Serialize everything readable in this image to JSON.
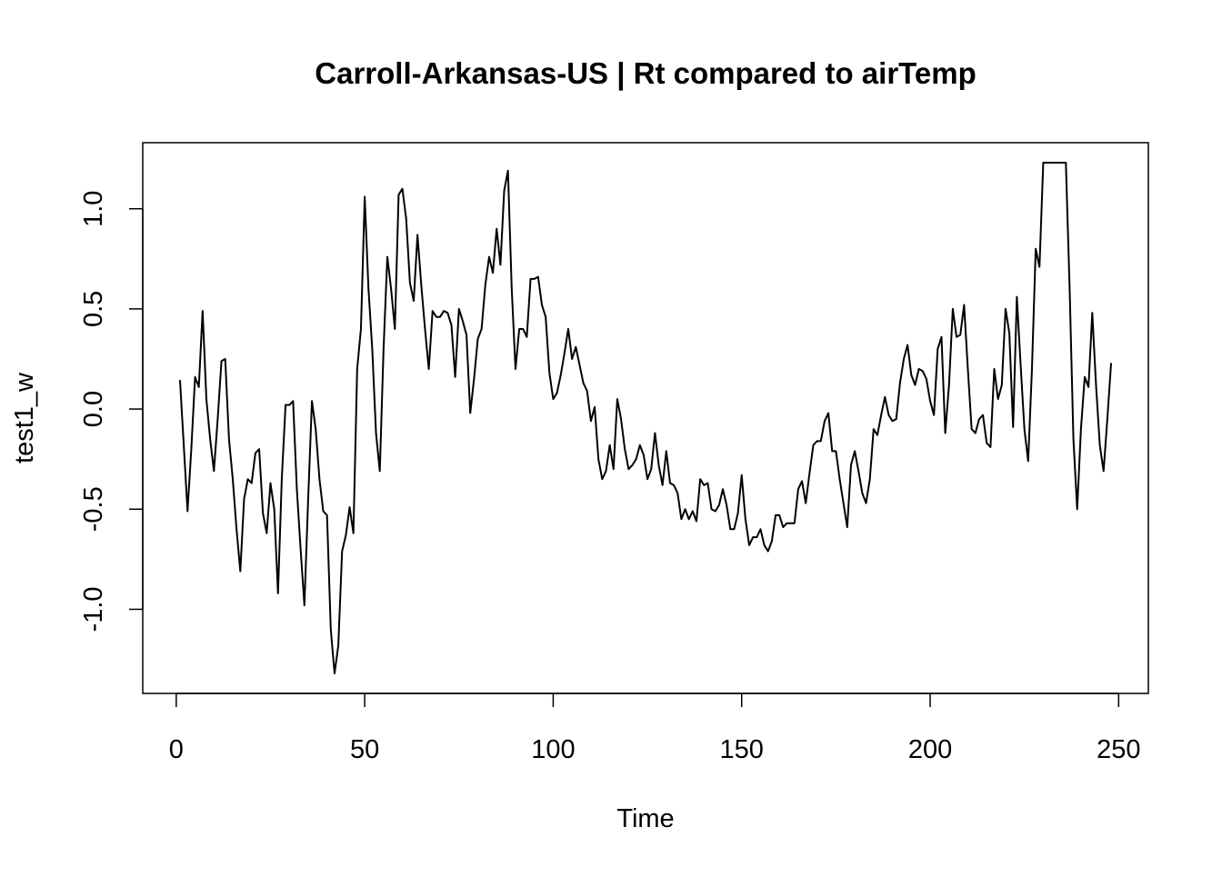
{
  "chart_data": {
    "type": "line",
    "title": "Carroll-Arkansas-US | Rt compared to airTemp",
    "xlabel": "Time",
    "ylabel": "test1_w",
    "x": [
      1,
      2,
      3,
      4,
      5,
      6,
      7,
      8,
      9,
      10,
      11,
      12,
      13,
      14,
      15,
      16,
      17,
      18,
      19,
      20,
      21,
      22,
      23,
      24,
      25,
      26,
      27,
      28,
      29,
      30,
      31,
      32,
      33,
      34,
      35,
      36,
      37,
      38,
      39,
      40,
      41,
      42,
      43,
      44,
      45,
      46,
      47,
      48,
      49,
      50,
      51,
      52,
      53,
      54,
      55,
      56,
      57,
      58,
      59,
      60,
      61,
      62,
      63,
      64,
      65,
      66,
      67,
      68,
      69,
      70,
      71,
      72,
      73,
      74,
      75,
      76,
      77,
      78,
      79,
      80,
      81,
      82,
      83,
      84,
      85,
      86,
      87,
      88,
      89,
      90,
      91,
      92,
      93,
      94,
      95,
      96,
      97,
      98,
      99,
      100,
      101,
      102,
      103,
      104,
      105,
      106,
      107,
      108,
      109,
      110,
      111,
      112,
      113,
      114,
      115,
      116,
      117,
      118,
      119,
      120,
      121,
      122,
      123,
      124,
      125,
      126,
      127,
      128,
      129,
      130,
      131,
      132,
      133,
      134,
      135,
      136,
      137,
      138,
      139,
      140,
      141,
      142,
      143,
      144,
      145,
      146,
      147,
      148,
      149,
      150,
      151,
      152,
      153,
      154,
      155,
      156,
      157,
      158,
      159,
      160,
      161,
      162,
      163,
      164,
      165,
      166,
      167,
      168,
      169,
      170,
      171,
      172,
      173,
      174,
      175,
      176,
      177,
      178,
      179,
      180,
      181,
      182,
      183,
      184,
      185,
      186,
      187,
      188,
      189,
      190,
      191,
      192,
      193,
      194,
      195,
      196,
      197,
      198,
      199,
      200,
      201,
      202,
      203,
      204,
      205,
      206,
      207,
      208,
      209,
      210,
      211,
      212,
      213,
      214,
      215,
      216,
      217,
      218,
      219,
      220,
      221,
      222,
      223,
      224,
      225,
      226,
      227,
      228,
      229,
      230,
      231,
      232,
      233,
      234,
      235,
      236,
      237,
      238,
      239,
      240,
      241,
      242,
      243,
      244,
      245,
      246,
      247,
      248
    ],
    "series": [
      {
        "name": "test1_w",
        "color": "#000000",
        "values": [
          0.145,
          -0.18,
          -0.51,
          -0.2,
          0.16,
          0.11,
          0.49,
          0.05,
          -0.15,
          -0.31,
          -0.05,
          0.24,
          0.25,
          -0.15,
          -0.35,
          -0.6,
          -0.81,
          -0.45,
          -0.35,
          -0.37,
          -0.22,
          -0.2,
          -0.52,
          -0.62,
          -0.37,
          -0.5,
          -0.92,
          -0.35,
          0.02,
          0.02,
          0.04,
          -0.4,
          -0.7,
          -0.98,
          -0.45,
          0.04,
          -0.1,
          -0.35,
          -0.51,
          -0.53,
          -1.1,
          -1.32,
          -1.18,
          -0.71,
          -0.63,
          -0.49,
          -0.62,
          0.2,
          0.4,
          1.06,
          0.6,
          0.3,
          -0.12,
          -0.31,
          0.3,
          0.76,
          0.6,
          0.4,
          1.07,
          1.1,
          0.95,
          0.63,
          0.54,
          0.87,
          0.62,
          0.4,
          0.2,
          0.49,
          0.46,
          0.46,
          0.49,
          0.48,
          0.42,
          0.16,
          0.5,
          0.44,
          0.37,
          -0.02,
          0.15,
          0.35,
          0.4,
          0.62,
          0.76,
          0.68,
          0.9,
          0.72,
          1.09,
          1.19,
          0.6,
          0.2,
          0.4,
          0.4,
          0.36,
          0.65,
          0.65,
          0.66,
          0.52,
          0.46,
          0.18,
          0.05,
          0.08,
          0.17,
          0.28,
          0.4,
          0.25,
          0.31,
          0.22,
          0.13,
          0.09,
          -0.06,
          0.01,
          -0.25,
          -0.35,
          -0.31,
          -0.18,
          -0.3,
          0.05,
          -0.05,
          -0.2,
          -0.3,
          -0.28,
          -0.25,
          -0.18,
          -0.23,
          -0.35,
          -0.3,
          -0.12,
          -0.28,
          -0.38,
          -0.21,
          -0.37,
          -0.38,
          -0.42,
          -0.55,
          -0.5,
          -0.55,
          -0.51,
          -0.56,
          -0.35,
          -0.38,
          -0.37,
          -0.5,
          -0.51,
          -0.48,
          -0.4,
          -0.48,
          -0.6,
          -0.6,
          -0.52,
          -0.33,
          -0.55,
          -0.68,
          -0.64,
          -0.64,
          -0.6,
          -0.68,
          -0.71,
          -0.66,
          -0.53,
          -0.53,
          -0.59,
          -0.57,
          -0.57,
          -0.57,
          -0.4,
          -0.36,
          -0.47,
          -0.32,
          -0.18,
          -0.16,
          -0.16,
          -0.06,
          -0.02,
          -0.21,
          -0.21,
          -0.35,
          -0.47,
          -0.59,
          -0.28,
          -0.21,
          -0.31,
          -0.42,
          -0.47,
          -0.35,
          -0.1,
          -0.13,
          -0.03,
          0.06,
          -0.03,
          -0.06,
          -0.05,
          0.13,
          0.25,
          0.32,
          0.17,
          0.12,
          0.2,
          0.19,
          0.15,
          0.04,
          -0.03,
          0.3,
          0.36,
          -0.12,
          0.12,
          0.5,
          0.36,
          0.37,
          0.52,
          0.2,
          -0.1,
          -0.12,
          -0.05,
          -0.03,
          -0.17,
          -0.19,
          0.2,
          0.05,
          0.12,
          0.5,
          0.38,
          -0.09,
          0.56,
          0.22,
          -0.1,
          -0.26,
          0.2,
          0.8,
          0.71,
          1.23,
          1.23,
          1.23,
          1.23,
          1.23,
          1.23,
          1.23,
          0.6,
          -0.15,
          -0.5,
          -0.1,
          0.16,
          0.11,
          0.48,
          0.12,
          -0.18,
          -0.31,
          -0.05,
          0.23
        ]
      }
    ],
    "xlim": [
      -8.88,
      257.88
    ],
    "ylim": [
      -1.42,
      1.33
    ],
    "xticks": [
      0,
      50,
      100,
      150,
      200,
      250
    ],
    "yticks": [
      {
        "value": -1,
        "label": "-1.0"
      },
      {
        "value": -0.5,
        "label": "-0.5"
      },
      {
        "value": 0,
        "label": "0.0"
      },
      0.5,
      {
        "value": 1,
        "label": "1.0"
      }
    ]
  }
}
